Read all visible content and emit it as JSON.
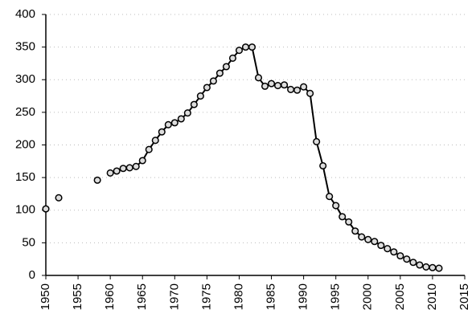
{
  "chart_data": {
    "type": "line",
    "x": [
      1950,
      1951,
      1952,
      1953,
      1954,
      1955,
      1956,
      1957,
      1958,
      1959,
      1960,
      1961,
      1962,
      1963,
      1964,
      1965,
      1966,
      1967,
      1968,
      1969,
      1970,
      1971,
      1972,
      1973,
      1974,
      1975,
      1976,
      1977,
      1978,
      1979,
      1980,
      1981,
      1982,
      1983,
      1984,
      1985,
      1986,
      1987,
      1988,
      1989,
      1990,
      1991,
      1992,
      1993,
      1994,
      1995,
      1996,
      1997,
      1998,
      1999,
      2000,
      2001,
      2002,
      2003,
      2004,
      2005,
      2006,
      2007,
      2008,
      2009,
      2010,
      2011
    ],
    "series": [
      {
        "color": "#000000",
        "values": [
          102,
          null,
          119,
          null,
          null,
          null,
          null,
          null,
          146,
          null,
          157,
          160,
          164,
          165,
          167,
          176,
          193,
          207,
          220,
          231,
          234,
          240,
          249,
          262,
          275,
          288,
          298,
          310,
          320,
          333,
          345,
          350,
          350,
          303,
          290,
          294,
          291,
          292,
          285,
          284,
          289,
          279,
          205,
          168,
          121,
          107,
          90,
          82,
          68,
          59,
          55,
          52,
          46,
          41,
          36,
          30,
          25,
          20,
          16,
          13,
          12,
          11
        ]
      }
    ],
    "xlim": [
      1950,
      2015
    ],
    "xticks": [
      1950,
      1955,
      1960,
      1965,
      1970,
      1975,
      1980,
      1985,
      1990,
      1995,
      2000,
      2005,
      2010,
      2015
    ],
    "ylim": [
      0,
      400
    ],
    "yticks": [
      0,
      50,
      100,
      150,
      200,
      250,
      300,
      350,
      400
    ],
    "grid": true
  }
}
